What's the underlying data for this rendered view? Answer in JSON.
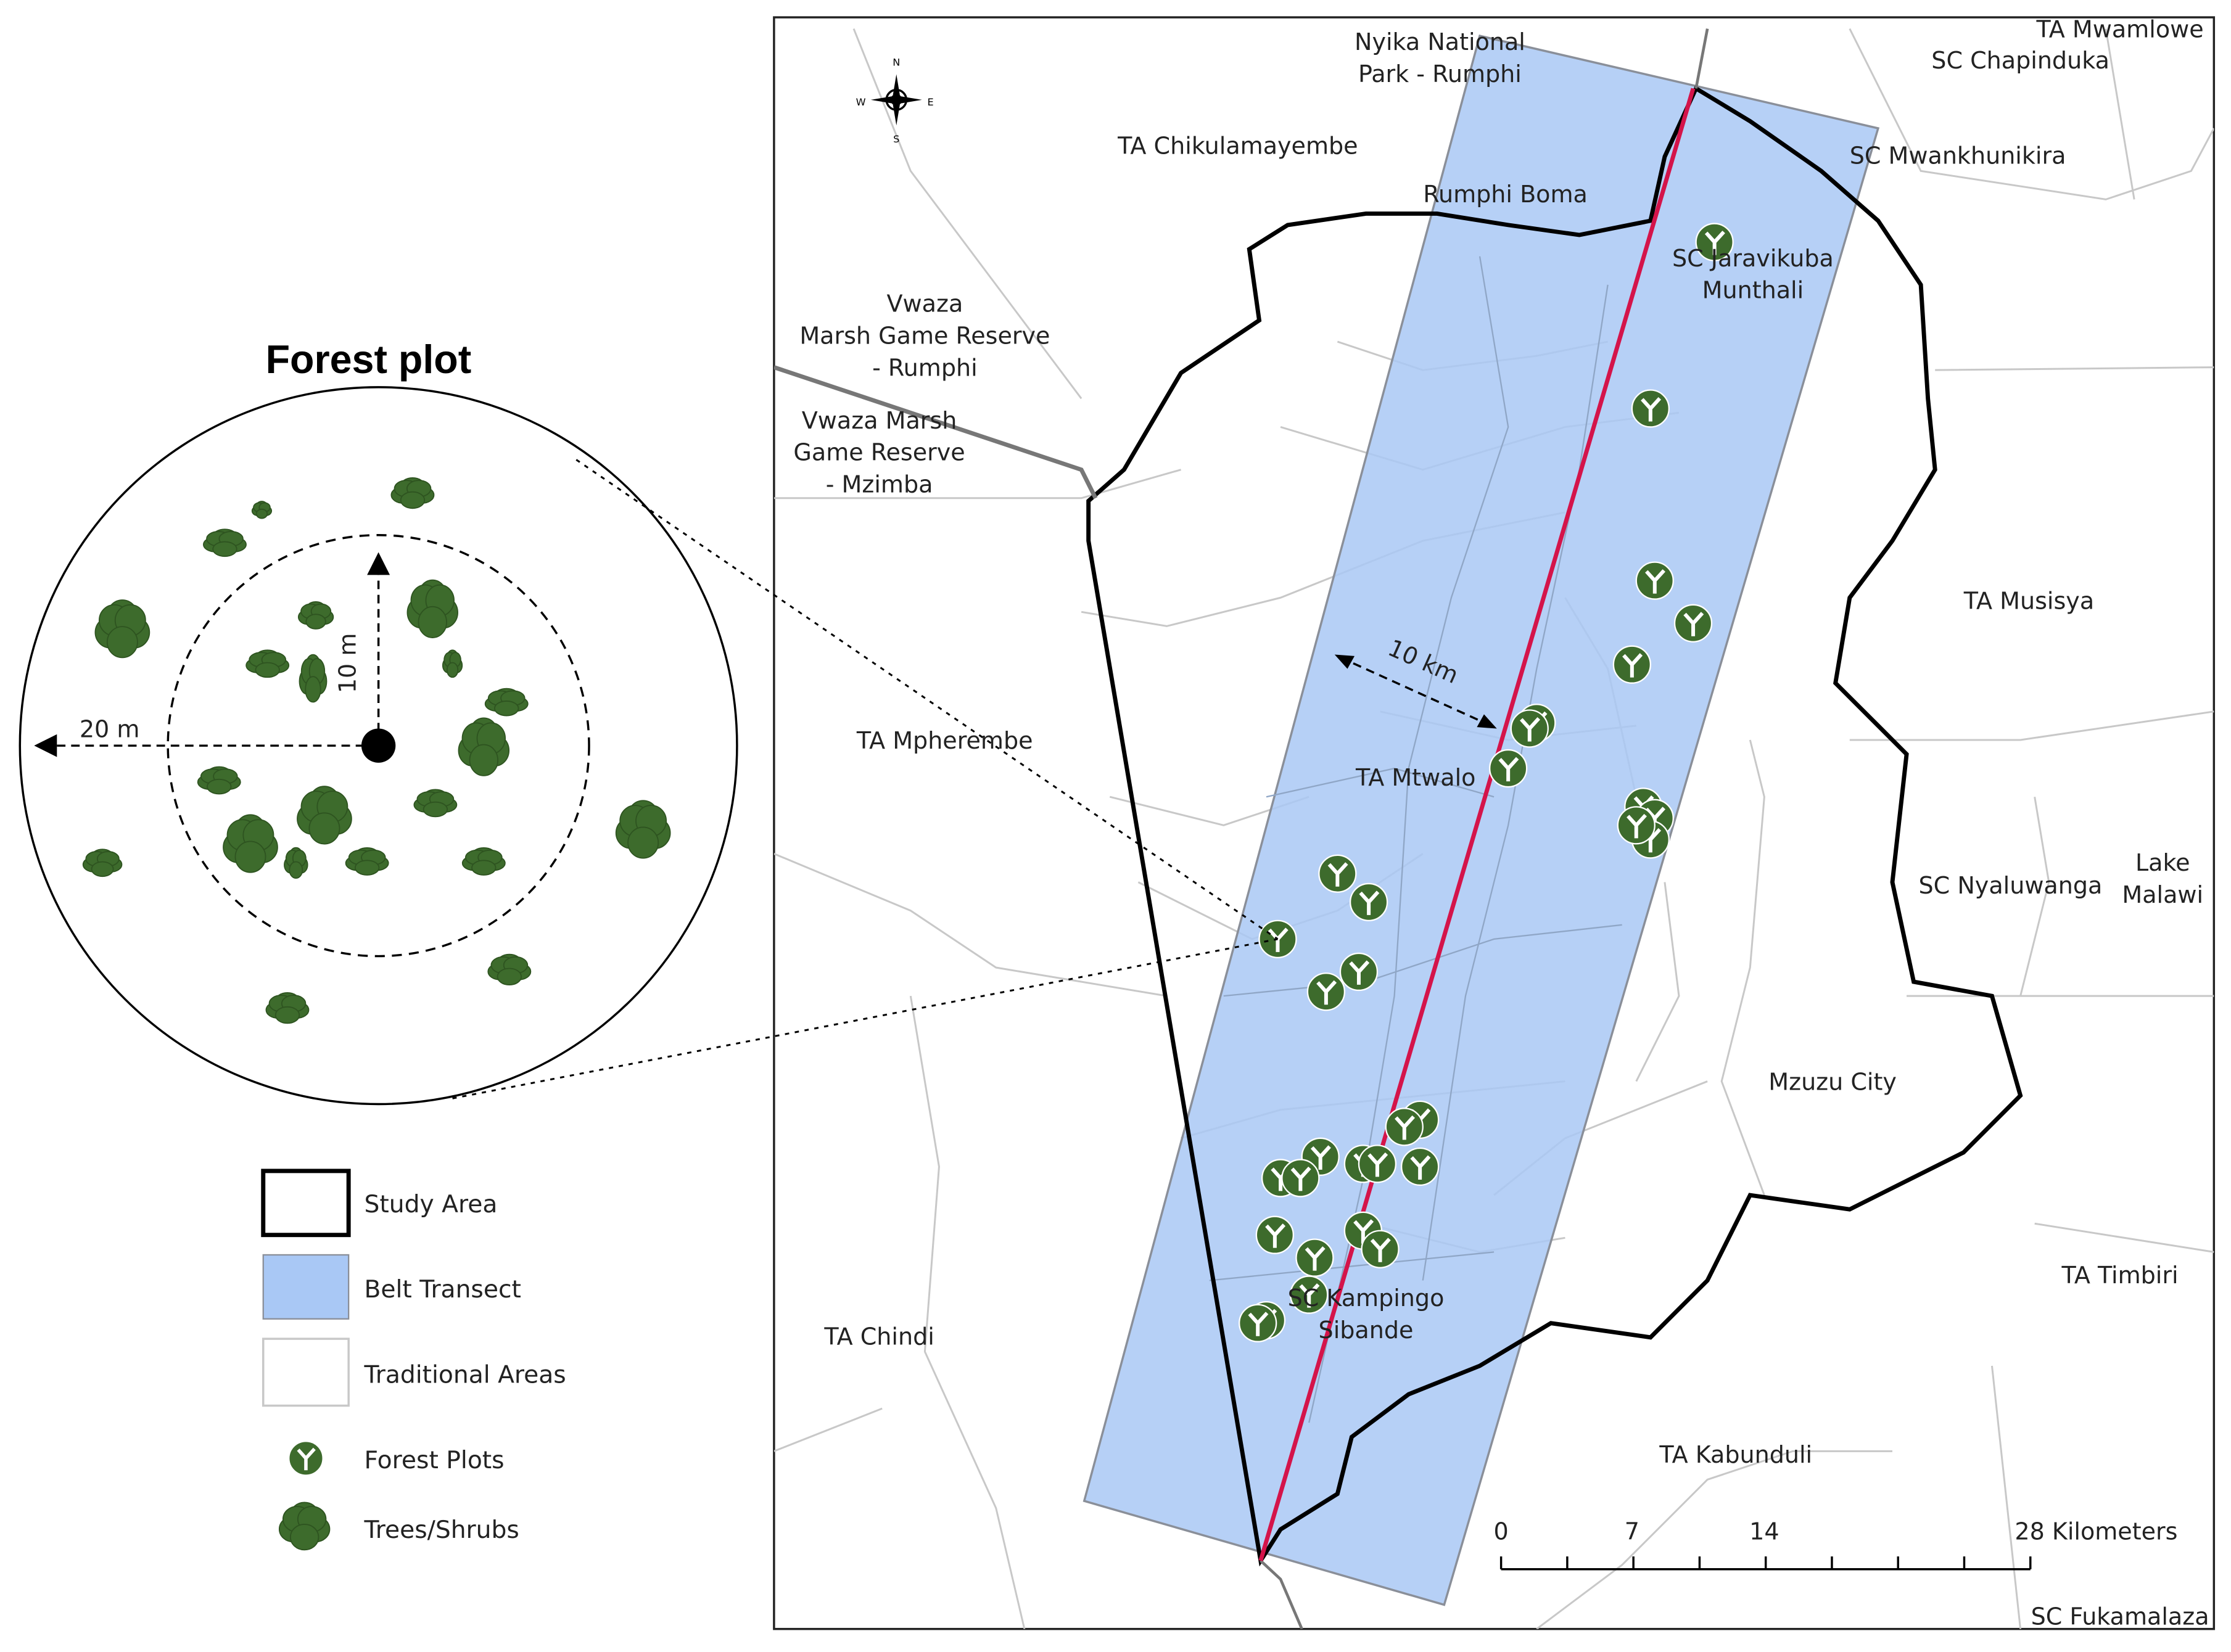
{
  "inset": {
    "title": "Forest plot",
    "inner_radius": "10 m",
    "outer_radius": "20 m"
  },
  "map": {
    "labels": [
      [
        "TA Mwamlowe"
      ],
      [
        "SC Chapinduka"
      ],
      [
        "Nyika National",
        "Park - Rumphi"
      ],
      [
        "TA Chikulamayembe"
      ],
      [
        "Rumphi Boma"
      ],
      [
        "SC Mwankhunikira"
      ],
      [
        "SC Jaravikuba",
        "Munthali"
      ],
      [
        "Vwaza",
        "Marsh Game Reserve",
        "- Rumphi"
      ],
      [
        "Vwaza Marsh",
        "Game Reserve",
        "- Mzimba"
      ],
      [
        "TA Musisya"
      ],
      [
        "TA Mpherembe"
      ],
      [
        "TA Mtwalo"
      ],
      [
        "SC Nyaluwanga"
      ],
      [
        "Lake",
        "Malawi"
      ],
      [
        "Mzuzu City"
      ],
      [
        "TA Timbiri"
      ],
      [
        "SC Kampingo",
        "Sibande"
      ],
      [
        "TA Chindi"
      ],
      [
        "TA Kabunduli"
      ],
      [
        "SC Fukamalaza"
      ]
    ],
    "transect_width": "10 km",
    "compass": [
      "N",
      "E",
      "S",
      "W"
    ],
    "scale_bar": [
      "0",
      "7",
      "14",
      "28 Kilometers"
    ]
  },
  "legend": [
    "Study Area",
    "Belt Transect",
    "Traditional Areas",
    "Forest Plots",
    "Trees/Shrubs"
  ]
}
